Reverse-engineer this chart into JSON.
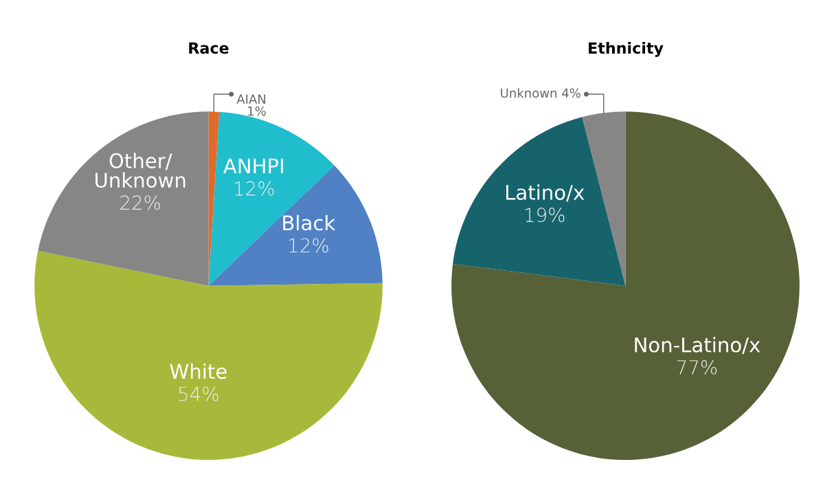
{
  "chart_data": [
    {
      "type": "pie",
      "title": "Race",
      "categories": [
        "AIAN",
        "ANHPI",
        "Black",
        "White",
        "Other/\nUnknown"
      ],
      "values": [
        1,
        12,
        12,
        54,
        22
      ],
      "colors": [
        "#e06a2a",
        "#20bdcc",
        "#4f81c4",
        "#a8b83a",
        "#868686"
      ],
      "value_labels": [
        "1%",
        "12%",
        "12%",
        "54%",
        "22%"
      ]
    },
    {
      "type": "pie",
      "title": "Ethnicity",
      "categories": [
        "Non-Latino/x",
        "Latino/x",
        "Unknown"
      ],
      "values": [
        77,
        19,
        4
      ],
      "colors": [
        "#566138",
        "#17636c",
        "#868686"
      ],
      "value_labels": [
        "77%",
        "19%",
        "4%"
      ]
    }
  ]
}
